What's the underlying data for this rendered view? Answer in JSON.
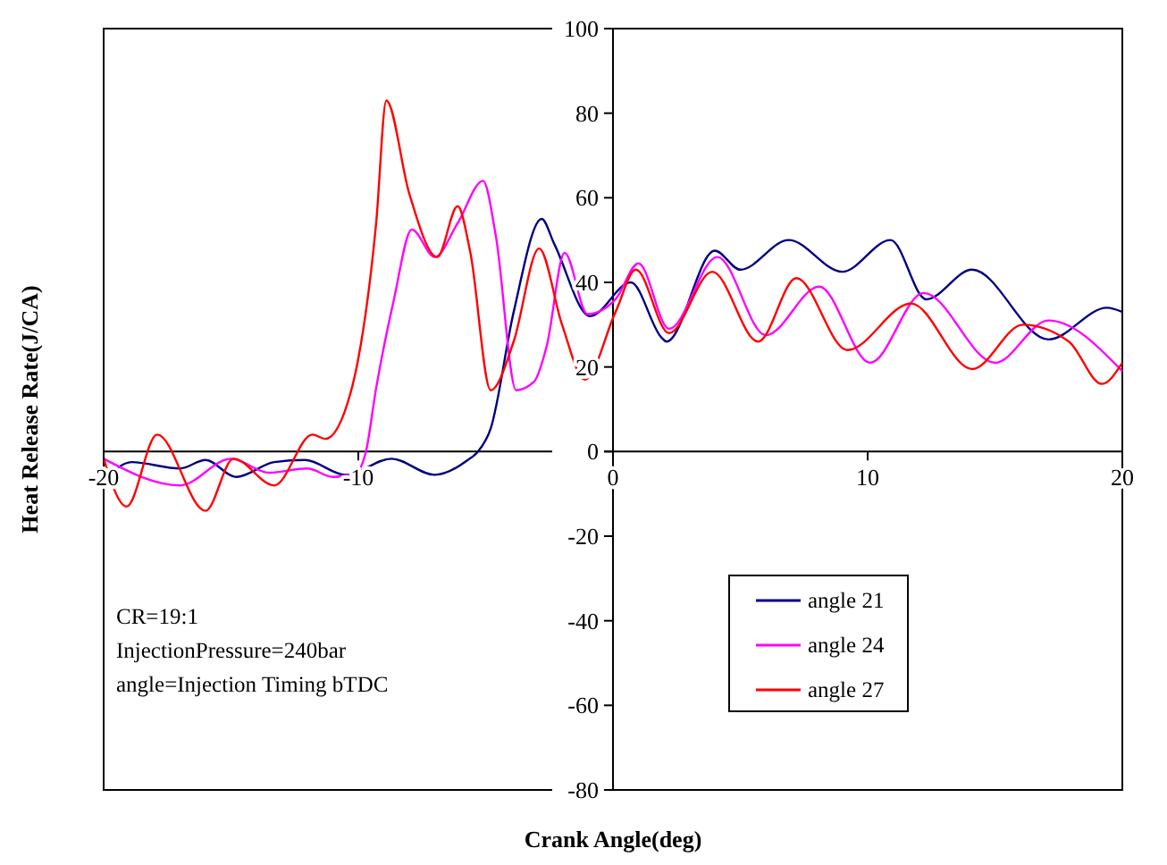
{
  "chart_data": {
    "type": "line",
    "xlabel": "Crank Angle(deg)",
    "ylabel": "Heat Release Rate(J/CA)",
    "xlim": [
      -20,
      20
    ],
    "xticks": [
      -20,
      -10,
      0,
      10,
      20
    ],
    "ylim": [
      -80,
      100
    ],
    "yticks": [
      -80,
      -60,
      -40,
      -20,
      0,
      20,
      40,
      60,
      80,
      100
    ],
    "grid": false,
    "legend": "bottom right",
    "marker": "none",
    "line_style": "solid",
    "annotations": [
      "CR=19:1",
      "InjectionPressure=240bar",
      "angle=Injection Timing bTDC"
    ],
    "series": [
      {
        "name": "angle 21",
        "color": "#000080",
        "x": [
          -20,
          -18.9,
          -17,
          -16,
          -14.8,
          -13.3,
          -12.1,
          -10.5,
          -8.7,
          -7,
          -5.7,
          -5.3,
          -4.8,
          -3.9,
          -2.8,
          -2.3,
          -0.9,
          0.7,
          1.9,
          2.1,
          4,
          5,
          6.9,
          9,
          10.9,
          12.3,
          14.1,
          17.1,
          19.4,
          20
        ],
        "values": [
          -7,
          -2.5,
          -4,
          -2,
          -6,
          -2.5,
          -2,
          -5.5,
          -1.7,
          -5.5,
          -2,
          0,
          5.5,
          33,
          55,
          49,
          32,
          40,
          27,
          26,
          47.5,
          43,
          50,
          42.5,
          50,
          36,
          43,
          26.5,
          34,
          33
        ]
      },
      {
        "name": "angle 24",
        "color": "#ff00ff",
        "x": [
          -20,
          -17,
          -15,
          -13.5,
          -12,
          -11,
          -10.1,
          -9.7,
          -9.3,
          -8.6,
          -7.9,
          -7,
          -6.1,
          -5.1,
          -4.6,
          -3.8,
          -3.1,
          -2.6,
          -1.9,
          -1,
          0.1,
          1,
          2.2,
          4.1,
          6,
          8.1,
          10.1,
          12.2,
          15,
          17.1,
          20
        ],
        "values": [
          -1.7,
          -8,
          -1.7,
          -5,
          -4,
          -6,
          -5,
          0,
          15,
          36,
          52.5,
          46,
          54,
          64,
          51,
          14.5,
          16.5,
          25,
          47,
          32.5,
          36,
          44.5,
          29,
          46,
          27.5,
          39,
          21,
          37.5,
          21,
          31,
          19
        ]
      },
      {
        "name": "angle 27",
        "color": "#ff0000",
        "x": [
          -20,
          -19.1,
          -17.9,
          -16,
          -14.9,
          -13.3,
          -11.8,
          -11.3,
          -10.3,
          -10,
          -9.3,
          -8.9,
          -8,
          -6.9,
          -6.1,
          -5.6,
          -4.8,
          -3.9,
          -2.9,
          -2,
          -1.1,
          0.1,
          0.9,
          2.2,
          3.9,
          5.7,
          7.2,
          9.2,
          11.7,
          14.1,
          16.1,
          17.9,
          19.2,
          20
        ],
        "values": [
          -1.7,
          -13,
          4,
          -14,
          -1.7,
          -8,
          4,
          3,
          14,
          22,
          54,
          83,
          61,
          46,
          58,
          47,
          14.5,
          26,
          48,
          30,
          17,
          33,
          43,
          28,
          42.5,
          26,
          41,
          24,
          35,
          19.5,
          30,
          26,
          16,
          21
        ]
      }
    ]
  }
}
